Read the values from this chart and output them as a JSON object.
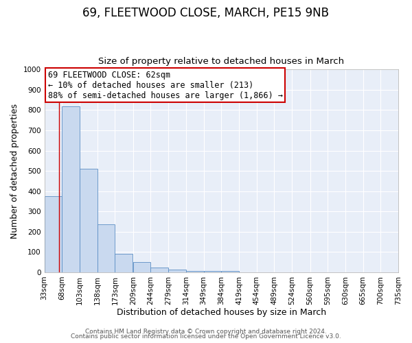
{
  "title": "69, FLEETWOOD CLOSE, MARCH, PE15 9NB",
  "subtitle": "Size of property relative to detached houses in March",
  "xlabel": "Distribution of detached houses by size in March",
  "ylabel": "Number of detached properties",
  "bar_edges": [
    33,
    68,
    103,
    138,
    173,
    209,
    244,
    279,
    314,
    349,
    384,
    419,
    454,
    489,
    524,
    560,
    595,
    630,
    665,
    700,
    735
  ],
  "bar_heights": [
    375,
    820,
    510,
    235,
    92,
    52,
    22,
    15,
    8,
    5,
    5,
    0,
    0,
    0,
    0,
    0,
    0,
    0,
    0,
    0
  ],
  "bar_color": "#c9d9ef",
  "bar_edge_color": "#5b8ec4",
  "ylim": [
    0,
    1000
  ],
  "yticks": [
    0,
    100,
    200,
    300,
    400,
    500,
    600,
    700,
    800,
    900,
    1000
  ],
  "x_tick_labels": [
    "33sqm",
    "68sqm",
    "103sqm",
    "138sqm",
    "173sqm",
    "209sqm",
    "244sqm",
    "279sqm",
    "314sqm",
    "349sqm",
    "384sqm",
    "419sqm",
    "454sqm",
    "489sqm",
    "524sqm",
    "560sqm",
    "595sqm",
    "630sqm",
    "665sqm",
    "700sqm",
    "735sqm"
  ],
  "property_line_x": 62,
  "property_line_color": "#cc0000",
  "annotation_line1": "69 FLEETWOOD CLOSE: 62sqm",
  "annotation_line2": "← 10% of detached houses are smaller (213)",
  "annotation_line3": "88% of semi-detached houses are larger (1,866) →",
  "footer_line1": "Contains HM Land Registry data © Crown copyright and database right 2024.",
  "footer_line2": "Contains public sector information licensed under the Open Government Licence v3.0.",
  "background_color": "#e8eef8",
  "plot_bg_color": "#e8eef8",
  "grid_color": "#ffffff",
  "title_fontsize": 12,
  "subtitle_fontsize": 9.5,
  "axis_label_fontsize": 9,
  "tick_fontsize": 7.5,
  "annotation_fontsize": 8.5,
  "footer_fontsize": 6.5
}
